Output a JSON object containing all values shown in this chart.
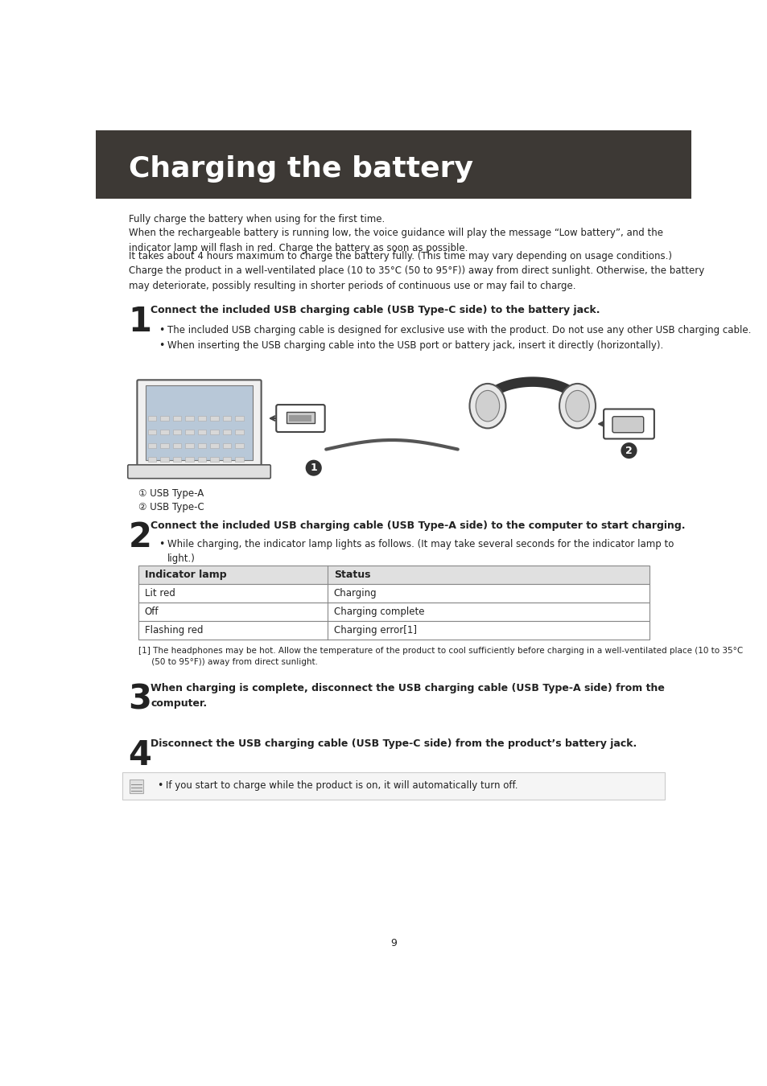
{
  "title": "Charging the battery",
  "header_bg": "#3d3935",
  "header_text_color": "#ffffff",
  "body_bg": "#ffffff",
  "body_text_color": "#222222",
  "page_number": "9",
  "intro_lines": [
    "Fully charge the battery when using for the first time.",
    "When the rechargeable battery is running low, the voice guidance will play the message “Low battery”, and the\nindicator lamp will flash in red. Charge the battery as soon as possible.",
    "It takes about 4 hours maximum to charge the battery fully. (This time may vary depending on usage conditions.)\nCharge the product in a well-ventilated place (10 to 35°C (50 to 95°F)) away from direct sunlight. Otherwise, the battery\nmay deteriorate, possibly resulting in shorter periods of continuous use or may fail to charge."
  ],
  "step1_number": "1",
  "step1_bold": "Connect the included USB charging cable (USB Type-C side) to the battery jack.",
  "step1_bullets": [
    "The included USB charging cable is designed for exclusive use with the product. Do not use any other USB charging cable.",
    "When inserting the USB charging cable into the USB port or battery jack, insert it directly (horizontally)."
  ],
  "label1": "① USB Type-A",
  "label2": "② USB Type-C",
  "step2_number": "2",
  "step2_bold": "Connect the included USB charging cable (USB Type-A side) to the computer to start charging.",
  "step2_bullets": [
    "While charging, the indicator lamp lights as follows. (It may take several seconds for the indicator lamp to\nlight.)"
  ],
  "table_header": [
    "Indicator lamp",
    "Status"
  ],
  "table_rows": [
    [
      "Lit red",
      "Charging"
    ],
    [
      "Off",
      "Charging complete"
    ],
    [
      "Flashing red",
      "Charging error[1]"
    ]
  ],
  "table_header_bg": "#e0e0e0",
  "table_border": "#888888",
  "footnote": "[1] The headphones may be hot. Allow the temperature of the product to cool sufficiently before charging in a well-ventilated place (10 to 35°C\n     (50 to 95°F)) away from direct sunlight.",
  "step3_number": "3",
  "step3_bold": "When charging is complete, disconnect the USB charging cable (USB Type-A side) from the\ncomputer.",
  "step4_number": "4",
  "step4_bold": "Disconnect the USB charging cable (USB Type-C side) from the product’s battery jack.",
  "note_bullet": "If you start to charge while the product is on, it will automatically turn off.",
  "note_bg": "#f5f5f5",
  "note_border": "#cccccc"
}
